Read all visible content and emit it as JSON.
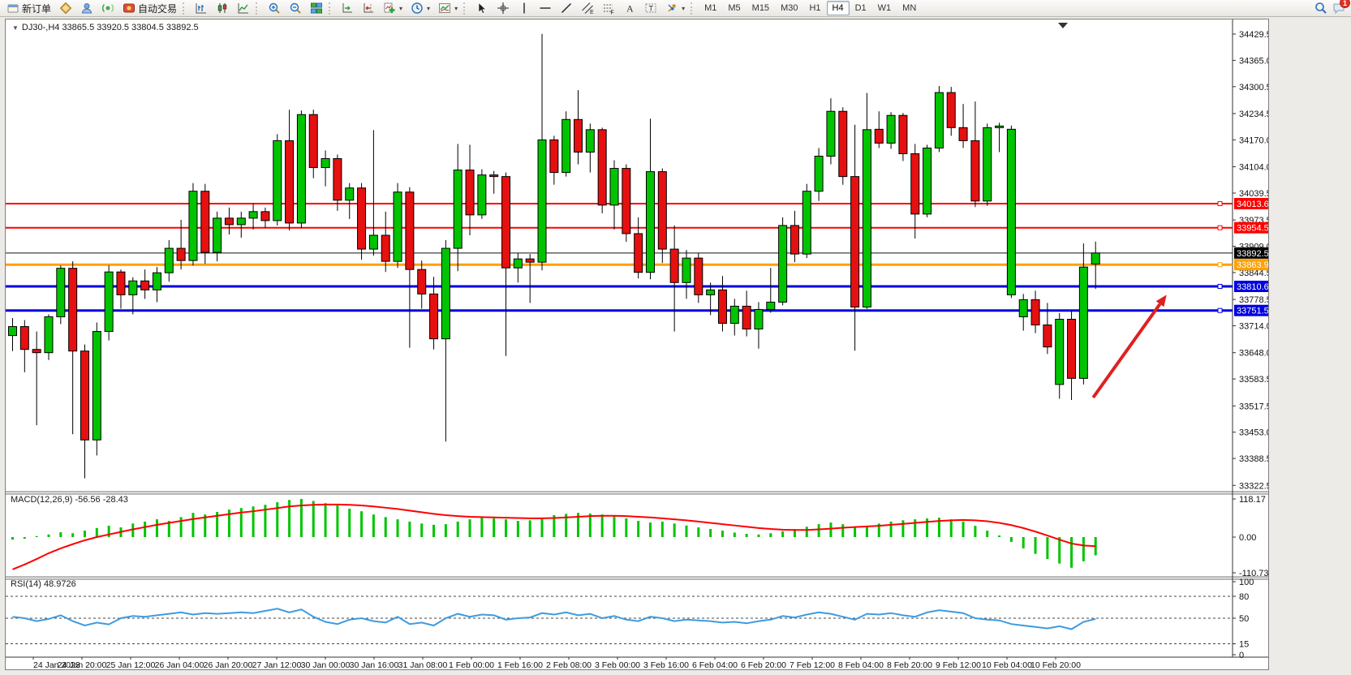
{
  "toolbar": {
    "new_order_label": "新订单",
    "auto_trading_label": "自动交易",
    "timeframes": [
      "M1",
      "M5",
      "M15",
      "M30",
      "H1",
      "H4",
      "D1",
      "W1",
      "MN"
    ],
    "active_timeframe": "H4",
    "notification_badge": "1"
  },
  "icons": {
    "dropdown_caret": "▾",
    "expander_triangle": "▼",
    "letter_a": "A",
    "letter_t": "T",
    "letter_e": "E",
    "letter_f": "F"
  },
  "chart": {
    "title": "DJ30-,H4  33865.5 33920.5 33804.5 33892.5",
    "macd_label": "MACD(12,26,9) -56.56 -28.43",
    "rsi_label": "RSI(14) 48.9726"
  },
  "chart_data": {
    "type": "candlestick",
    "symbol": "DJ30-",
    "timeframe": "H4",
    "current_bar": {
      "open": 33865.5,
      "high": 33920.5,
      "low": 33804.5,
      "close": 33892.5
    },
    "y_axis": {
      "top_price": 34462.0,
      "bottom_price": 33307.0,
      "ticks": [
        "34429.5",
        "34365.0",
        "34300.5",
        "34234.5",
        "34170.0",
        "34104.0",
        "34039.5",
        "33973.5",
        "33909.0",
        "33844.5",
        "33778.5",
        "33714.0",
        "33648.0",
        "33583.5",
        "33517.5",
        "33453.0",
        "33388.5",
        "33322.5"
      ]
    },
    "x_axis_labels": [
      "24 Jan 2023",
      "24 Jan 20:00",
      "25 Jan 12:00",
      "26 Jan 04:00",
      "26 Jan 20:00",
      "27 Jan 12:00",
      "30 Jan 00:00",
      "30 Jan 16:00",
      "31 Jan 08:00",
      "1 Feb 00:00",
      "1 Feb 16:00",
      "2 Feb 08:00",
      "3 Feb 00:00",
      "3 Feb 16:00",
      "6 Feb 04:00",
      "6 Feb 20:00",
      "7 Feb 12:00",
      "8 Feb 04:00",
      "8 Feb 20:00",
      "9 Feb 12:00",
      "10 Feb 04:00",
      "10 Feb 20:00"
    ],
    "horizontal_lines": [
      {
        "price": 34013.6,
        "label": "34013.6",
        "color": "#ff0000",
        "thickness": 2,
        "role": "resistance-line"
      },
      {
        "price": 33954.5,
        "label": "33954.5",
        "color": "#ff0000",
        "thickness": 2,
        "role": "resistance-line"
      },
      {
        "price": 33892.5,
        "label": "33892.5",
        "color": "#111111",
        "thickness": 1,
        "role": "bid-price-line"
      },
      {
        "price": 33863.9,
        "label": "33863.9",
        "color": "#ffa000",
        "thickness": 3,
        "role": "level-line"
      },
      {
        "price": 33810.6,
        "label": "33810.6",
        "color": "#0000e0",
        "thickness": 3,
        "role": "support-line"
      },
      {
        "price": 33751.5,
        "label": "33751.5",
        "color": "#0000e0",
        "thickness": 3,
        "role": "support-line"
      }
    ],
    "candles": [
      [
        33690,
        33733,
        33652,
        33712
      ],
      [
        33712,
        33728,
        33600,
        33656
      ],
      [
        33656,
        33700,
        33470,
        33648
      ],
      [
        33648,
        33742,
        33630,
        33736
      ],
      [
        33736,
        33862,
        33718,
        33855
      ],
      [
        33855,
        33872,
        33448,
        33652
      ],
      [
        33652,
        33668,
        33340,
        33434
      ],
      [
        33434,
        33722,
        33396,
        33700
      ],
      [
        33700,
        33862,
        33678,
        33846
      ],
      [
        33846,
        33852,
        33756,
        33790
      ],
      [
        33790,
        33833,
        33742,
        33824
      ],
      [
        33824,
        33852,
        33780,
        33802
      ],
      [
        33802,
        33858,
        33772,
        33844
      ],
      [
        33844,
        33924,
        33822,
        33904
      ],
      [
        33904,
        33974,
        33852,
        33874
      ],
      [
        33874,
        34064,
        33862,
        34044
      ],
      [
        34044,
        34062,
        33866,
        33894
      ],
      [
        33894,
        33994,
        33872,
        33978
      ],
      [
        33978,
        34004,
        33938,
        33962
      ],
      [
        33962,
        33994,
        33930,
        33978
      ],
      [
        33978,
        34014,
        33950,
        33994
      ],
      [
        33994,
        34004,
        33954,
        33972
      ],
      [
        33972,
        34184,
        33960,
        34168
      ],
      [
        34168,
        34244,
        33948,
        33966
      ],
      [
        33966,
        34242,
        33954,
        34232
      ],
      [
        34232,
        34244,
        34076,
        34102
      ],
      [
        34102,
        34144,
        34056,
        34124
      ],
      [
        34124,
        34134,
        33996,
        34022
      ],
      [
        34022,
        34064,
        33976,
        34052
      ],
      [
        34052,
        34064,
        33876,
        33902
      ],
      [
        33902,
        34194,
        33886,
        33936
      ],
      [
        33936,
        33994,
        33846,
        33872
      ],
      [
        33872,
        34064,
        33856,
        34042
      ],
      [
        34042,
        34054,
        33660,
        33852
      ],
      [
        33852,
        33874,
        33756,
        33792
      ],
      [
        33792,
        33834,
        33656,
        33682
      ],
      [
        33682,
        33924,
        33430,
        33904
      ],
      [
        33904,
        34160,
        33848,
        34096
      ],
      [
        34096,
        34158,
        33936,
        33986
      ],
      [
        33986,
        34098,
        33976,
        34084
      ],
      [
        34084,
        34094,
        34038,
        34080
      ],
      [
        34080,
        34090,
        33640,
        33856
      ],
      [
        33856,
        33892,
        33820,
        33878
      ],
      [
        33878,
        33890,
        33770,
        33870
      ],
      [
        33870,
        34430,
        33850,
        34170
      ],
      [
        34170,
        34180,
        34060,
        34090
      ],
      [
        34090,
        34240,
        34080,
        34220
      ],
      [
        34220,
        34292,
        34110,
        34140
      ],
      [
        34140,
        34210,
        34090,
        34195
      ],
      [
        34195,
        34200,
        33990,
        34010
      ],
      [
        34010,
        34120,
        33950,
        34100
      ],
      [
        34100,
        34110,
        33920,
        33940
      ],
      [
        33940,
        33980,
        33830,
        33845
      ],
      [
        33845,
        34222,
        33828,
        34092
      ],
      [
        34092,
        34100,
        33868,
        33902
      ],
      [
        33902,
        33960,
        33700,
        33820
      ],
      [
        33820,
        33900,
        33780,
        33880
      ],
      [
        33880,
        33892,
        33770,
        33790
      ],
      [
        33790,
        33820,
        33740,
        33802
      ],
      [
        33802,
        33836,
        33700,
        33720
      ],
      [
        33720,
        33780,
        33690,
        33762
      ],
      [
        33762,
        33800,
        33688,
        33706
      ],
      [
        33706,
        33772,
        33658,
        33754
      ],
      [
        33754,
        33856,
        33746,
        33772
      ],
      [
        33772,
        33980,
        33764,
        33960
      ],
      [
        33960,
        33996,
        33870,
        33890
      ],
      [
        33890,
        34062,
        33880,
        34044
      ],
      [
        34044,
        34150,
        34020,
        34130
      ],
      [
        34130,
        34272,
        34110,
        34240
      ],
      [
        34240,
        34250,
        34060,
        34080
      ],
      [
        34080,
        34207,
        33653,
        33760
      ],
      [
        33760,
        34285,
        33755,
        34195
      ],
      [
        34196,
        34240,
        34150,
        34162
      ],
      [
        34162,
        34238,
        34148,
        34230
      ],
      [
        34230,
        34236,
        34118,
        34136
      ],
      [
        34136,
        34160,
        33928,
        33988
      ],
      [
        33988,
        34158,
        33980,
        34150
      ],
      [
        34150,
        34302,
        34140,
        34286
      ],
      [
        34286,
        34300,
        34180,
        34200
      ],
      [
        34200,
        34258,
        34150,
        34168
      ],
      [
        34168,
        34264,
        34005,
        34020
      ],
      [
        34020,
        34210,
        34008,
        34200
      ],
      [
        34200,
        34212,
        34140,
        34204
      ],
      [
        33790,
        34205,
        33782,
        34196
      ],
      [
        33736,
        33792,
        33702,
        33778
      ],
      [
        33778,
        33800,
        33696,
        33716
      ],
      [
        33716,
        33770,
        33645,
        33662
      ],
      [
        33570,
        33745,
        33535,
        33730
      ],
      [
        33730,
        33750,
        33532,
        33585
      ],
      [
        33585,
        33916,
        33570,
        33858
      ],
      [
        33865.5,
        33920.5,
        33804.5,
        33892.5
      ]
    ],
    "macd": {
      "params": "12,26,9",
      "value": -56.56,
      "signal_value": -28.43,
      "scale_ticks": [
        "118.17",
        "0.00",
        "-110.73"
      ],
      "scale_max": 118.17,
      "scale_min": -110.73,
      "histogram": [
        -8,
        -5,
        3,
        8,
        15,
        12,
        20,
        28,
        35,
        30,
        42,
        48,
        55,
        50,
        62,
        75,
        70,
        78,
        85,
        90,
        95,
        100,
        108,
        115,
        118,
        112,
        105,
        98,
        88,
        80,
        70,
        62,
        55,
        48,
        42,
        38,
        40,
        48,
        55,
        60,
        58,
        55,
        50,
        52,
        60,
        68,
        72,
        75,
        73,
        70,
        65,
        58,
        50,
        45,
        48,
        42,
        36,
        30,
        25,
        20,
        14,
        10,
        8,
        12,
        18,
        25,
        32,
        40,
        45,
        40,
        30,
        35,
        42,
        48,
        52,
        55,
        58,
        60,
        55,
        48,
        35,
        20,
        5,
        -15,
        -35,
        -52,
        -68,
        -82,
        -95,
        -75,
        -56.56
      ],
      "signal": [
        -100,
        -85,
        -68,
        -50,
        -35,
        -22,
        -10,
        0,
        8,
        16,
        24,
        31,
        38,
        44,
        50,
        56,
        61,
        66,
        71,
        76,
        80,
        85,
        90,
        95,
        98,
        100,
        101,
        101,
        100,
        98,
        95,
        91,
        87,
        82,
        77,
        72,
        68,
        65,
        63,
        62,
        61,
        60,
        59,
        58,
        58,
        59,
        61,
        63,
        65,
        66,
        66,
        65,
        63,
        61,
        58,
        55,
        52,
        48,
        44,
        40,
        36,
        32,
        28,
        25,
        23,
        22,
        22,
        24,
        26,
        29,
        31,
        33,
        35,
        38,
        41,
        44,
        47,
        50,
        52,
        53,
        52,
        49,
        44,
        37,
        28,
        17,
        5,
        -8,
        -20,
        -26,
        -28.43
      ]
    },
    "rsi": {
      "period": 14,
      "value": 48.9726,
      "levels": [
        80,
        50,
        15
      ],
      "scale_ticks": [
        "100",
        "80",
        "50",
        "15",
        "0"
      ],
      "values": [
        52,
        50,
        46,
        49,
        54,
        46,
        40,
        44,
        41.5,
        50,
        53,
        52,
        54,
        56,
        58,
        55,
        57,
        56,
        57,
        58,
        57,
        60,
        63,
        58,
        62,
        52,
        45,
        42,
        48,
        50,
        46,
        44,
        52,
        42,
        44,
        40,
        50,
        56,
        52,
        55,
        54,
        48,
        50,
        51,
        57,
        55,
        58,
        54,
        56,
        50,
        53,
        48,
        46,
        52,
        50,
        46,
        48,
        47,
        46,
        44,
        45,
        43,
        46,
        48,
        53,
        51,
        55,
        58,
        56,
        52,
        48,
        56,
        55,
        57,
        54,
        52,
        58,
        61,
        59,
        57,
        50,
        48,
        47,
        42,
        40,
        38,
        36,
        39,
        35,
        45,
        48.97
      ]
    },
    "annotation_arrow": {
      "color": "#e02020",
      "from_bar": 89.8,
      "from_price": 33538,
      "to_bar": 95.9,
      "to_price": 33790
    }
  }
}
